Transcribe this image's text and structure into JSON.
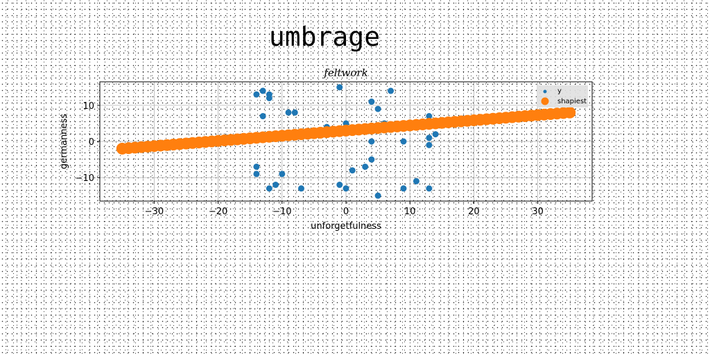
{
  "suptitle": "umbrage",
  "colors": {
    "series_a": "#1f77b4",
    "series_b": "#ff7f0e",
    "grid": "#b0b0b0",
    "legend_bg": "#e0e0e0"
  },
  "chart_data": {
    "type": "scatter",
    "title": "feltwork",
    "xlabel": "unforgetfulness",
    "ylabel": "germanness",
    "xlim": [
      -38.5,
      38.5
    ],
    "ylim": [
      -16.5,
      16.5
    ],
    "xticks": [
      -30,
      -20,
      -10,
      0,
      10,
      20,
      30
    ],
    "yticks": [
      -10,
      0,
      10
    ],
    "grid": true,
    "legend_position": "top-right",
    "series": [
      {
        "name": "y",
        "color": "#1f77b4",
        "marker_size": "small",
        "points": [
          [
            -14,
            13
          ],
          [
            -13,
            14
          ],
          [
            -12,
            13
          ],
          [
            -12,
            12
          ],
          [
            -13,
            7
          ],
          [
            -9,
            8
          ],
          [
            -8,
            8
          ],
          [
            -1,
            15
          ],
          [
            4,
            11
          ],
          [
            7,
            14
          ],
          [
            5,
            9
          ],
          [
            13,
            7
          ],
          [
            14,
            2
          ],
          [
            13,
            1
          ],
          [
            13,
            -1
          ],
          [
            9,
            0
          ],
          [
            4,
            0
          ],
          [
            -3,
            4
          ],
          [
            0,
            5
          ],
          [
            6,
            5
          ],
          [
            -14,
            -7
          ],
          [
            -14,
            -9
          ],
          [
            -10,
            -9
          ],
          [
            -11,
            -12
          ],
          [
            -12,
            -13
          ],
          [
            -7,
            -13
          ],
          [
            -1,
            -12
          ],
          [
            0,
            -13
          ],
          [
            1,
            -8
          ],
          [
            3,
            -7
          ],
          [
            4,
            -5
          ],
          [
            5,
            -15
          ],
          [
            9,
            -13
          ],
          [
            11,
            -11
          ],
          [
            13,
            -13
          ]
        ]
      },
      {
        "name": "shapiest",
        "color": "#ff7f0e",
        "marker_size": "large",
        "line": {
          "x_start": -35,
          "x_end": 35,
          "step": 1,
          "y_at_start": -2,
          "y_at_end": 8
        }
      }
    ]
  }
}
